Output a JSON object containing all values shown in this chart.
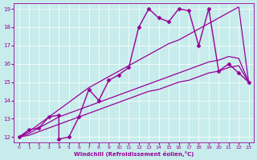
{
  "background_color": "#c8ecec",
  "line_color": "#990099",
  "xlim": [
    -0.5,
    23.5
  ],
  "ylim": [
    11.7,
    19.3
  ],
  "yticks": [
    12,
    13,
    14,
    15,
    16,
    17,
    18,
    19
  ],
  "xticks": [
    0,
    1,
    2,
    3,
    4,
    5,
    6,
    7,
    8,
    9,
    10,
    11,
    12,
    13,
    14,
    15,
    16,
    17,
    18,
    19,
    20,
    21,
    22,
    23
  ],
  "xlabel": "Windchill (Refroidissement éolien,°C)",
  "series": [
    {
      "x": [
        0,
        1,
        2,
        3,
        4,
        4,
        5,
        6,
        7,
        8,
        9,
        10,
        11,
        12,
        13,
        14,
        15,
        16,
        17,
        18,
        19,
        20,
        21,
        22,
        23
      ],
      "y": [
        12,
        12.4,
        12.5,
        13.1,
        13.2,
        11.9,
        12.0,
        13.1,
        14.6,
        14.0,
        15.1,
        15.4,
        15.8,
        18.0,
        19.0,
        18.5,
        18.3,
        19.0,
        18.9,
        17.0,
        19.0,
        15.6,
        16.0,
        15.5,
        15.0
      ],
      "marker": "D",
      "markersize": 2.5,
      "linewidth": 1.0
    },
    {
      "x": [
        0,
        1,
        2,
        3,
        4,
        5,
        6,
        7,
        8,
        9,
        10,
        11,
        12,
        13,
        14,
        15,
        16,
        17,
        18,
        19,
        20,
        21,
        22,
        23
      ],
      "y": [
        12,
        12.3,
        12.7,
        13.1,
        13.5,
        13.9,
        14.3,
        14.7,
        15.0,
        15.3,
        15.6,
        15.9,
        16.2,
        16.5,
        16.8,
        17.1,
        17.3,
        17.6,
        17.9,
        18.2,
        18.5,
        18.8,
        19.1,
        15.0
      ],
      "marker": null,
      "markersize": 0,
      "linewidth": 0.9
    },
    {
      "x": [
        0,
        1,
        2,
        3,
        4,
        5,
        6,
        7,
        8,
        9,
        10,
        11,
        12,
        13,
        14,
        15,
        16,
        17,
        18,
        19,
        20,
        21,
        22,
        23
      ],
      "y": [
        12,
        12.2,
        12.5,
        12.8,
        13.1,
        13.3,
        13.5,
        13.7,
        13.9,
        14.1,
        14.3,
        14.5,
        14.7,
        14.9,
        15.1,
        15.3,
        15.5,
        15.7,
        15.9,
        16.1,
        16.2,
        16.4,
        16.3,
        15.0
      ],
      "marker": null,
      "markersize": 0,
      "linewidth": 0.9
    },
    {
      "x": [
        0,
        1,
        2,
        3,
        4,
        5,
        6,
        7,
        8,
        9,
        10,
        11,
        12,
        13,
        14,
        15,
        16,
        17,
        18,
        19,
        20,
        21,
        22,
        23
      ],
      "y": [
        12,
        12.1,
        12.3,
        12.5,
        12.7,
        12.9,
        13.1,
        13.3,
        13.5,
        13.7,
        13.9,
        14.1,
        14.3,
        14.5,
        14.6,
        14.8,
        15.0,
        15.1,
        15.3,
        15.5,
        15.6,
        15.8,
        15.9,
        15.0
      ],
      "marker": null,
      "markersize": 0,
      "linewidth": 0.9
    }
  ]
}
